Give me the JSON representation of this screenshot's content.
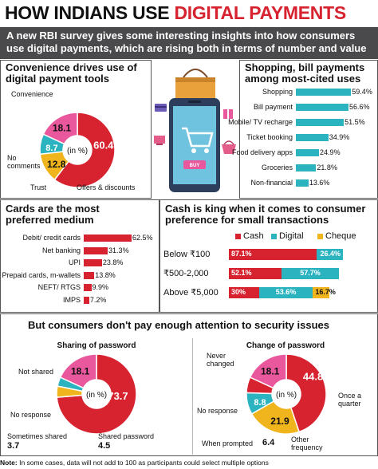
{
  "headline": {
    "prefix": "HOW INDIANS USE ",
    "highlight": "DIGITAL PAYMENTS"
  },
  "intro": "A new RBI survey gives some interesting insights into how consumers use digital payments, which are rising both in terms of number and value",
  "colors": {
    "red": "#d6232f",
    "pink": "#e9579c",
    "teal": "#2bb3c0",
    "yellow": "#f0b41c",
    "grey": "#4a4a4c"
  },
  "illustration": {
    "button_text": "BUY",
    "icons": [
      "shopping-bag-icon",
      "smartphone-icon",
      "shopping-cart-icon",
      "tv-icon",
      "gift-icon",
      "credit-card-icon",
      "shopping-basket-icon"
    ]
  },
  "panels": {
    "convenience": {
      "title": "Convenience drives use of digital payment tools",
      "center": "(in %)"
    },
    "shopping": {
      "title": "Shopping, bill payments among most-cited uses"
    },
    "cards": {
      "title": "Cards are the most preferred medium"
    },
    "cash": {
      "title": "Cash is king when it comes to consumer preference for small transactions"
    },
    "security": {
      "title": "But consumers don't pay enough attention to security issues"
    },
    "sharing": {
      "title": "Sharing of password",
      "center": "(in %)"
    },
    "change": {
      "title": "Change of password",
      "center": "(in %)"
    }
  },
  "note": {
    "label": "Note:",
    "text": " In some cases, data will not add to 100 as participants could select multiple options"
  },
  "chart_data": [
    {
      "id": "convenience",
      "type": "pie",
      "labels": [
        "Convenience",
        "Offers & discounts",
        "Trust",
        "No comments"
      ],
      "values": [
        60.4,
        12.8,
        8.7,
        18.1
      ],
      "value_labels": [
        "60.4",
        "12.8",
        "8.7",
        "18.1"
      ]
    },
    {
      "id": "uses",
      "type": "bar",
      "categories": [
        "Shopping",
        "Bill payment",
        "Mobile/ TV recharge",
        "Ticket booking",
        "Food delivery apps",
        "Groceries",
        "Non-financial"
      ],
      "values": [
        59.4,
        56.6,
        51.5,
        34.9,
        24.9,
        21.8,
        13.6
      ],
      "value_labels": [
        "59.4%",
        "56.6%",
        "51.5%",
        "34.9%",
        "24.9%",
        "21.8%",
        "13.6%"
      ],
      "xlim": [
        0,
        60
      ]
    },
    {
      "id": "medium",
      "type": "bar",
      "categories": [
        "Debit/ credit cards",
        "Net banking",
        "UPI",
        "Prepaid cards, m-wallets",
        "NEFT/ RTGS",
        "IMPS"
      ],
      "values": [
        62.5,
        31.3,
        23.8,
        13.8,
        9.9,
        7.2
      ],
      "value_labels": [
        "62.5%",
        "31.3%",
        "23.8%",
        "13.8%",
        "9.9%",
        "7.2%"
      ],
      "xlim": [
        0,
        62.5
      ]
    },
    {
      "id": "cash",
      "type": "bar",
      "categories": [
        "Below ₹100",
        "₹500-2,000",
        "Above ₹5,000"
      ],
      "series": [
        {
          "name": "Cash",
          "values": [
            87.1,
            52.1,
            30
          ],
          "value_labels": [
            "87.1%",
            "52.1%",
            "30%"
          ]
        },
        {
          "name": "Digital",
          "values": [
            26.4,
            57.7,
            53.6
          ],
          "value_labels": [
            "26.4%",
            "57.7%",
            "53.6%"
          ]
        },
        {
          "name": "Cheque",
          "values": [
            0,
            0,
            16.7
          ],
          "value_labels": [
            "",
            "",
            "16.7%"
          ]
        }
      ]
    },
    {
      "id": "sharing",
      "type": "pie",
      "labels": [
        "Not shared",
        "Shared password",
        "Sometimes shared",
        "No response"
      ],
      "values": [
        73.7,
        4.5,
        3.7,
        18.1
      ],
      "value_labels": [
        "73.7",
        "4.5",
        "3.7",
        "18.1"
      ]
    },
    {
      "id": "change",
      "type": "pie",
      "labels": [
        "Never changed",
        "Once a quarter",
        "Other frequency",
        "When prompted",
        "No response"
      ],
      "values": [
        44.8,
        21.9,
        8.8,
        6.4,
        18.1
      ],
      "value_labels": [
        "44.8",
        "21.9",
        "8.8",
        "6.4",
        "18.1"
      ]
    }
  ]
}
